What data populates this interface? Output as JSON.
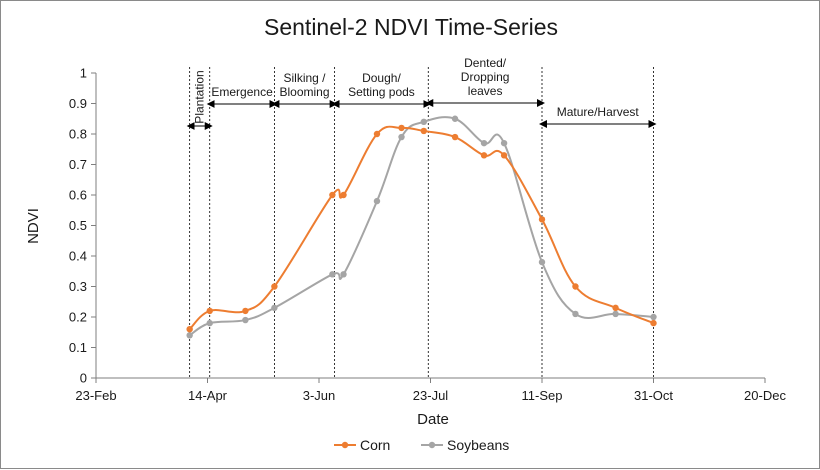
{
  "chart_data": {
    "type": "line",
    "title": "Sentinel-2 NDVI Time-Series",
    "xlabel": "Date",
    "ylabel": "NDVI",
    "ylim": [
      0,
      1
    ],
    "y_ticks": [
      "0",
      "0.1",
      "0.2",
      "0.3",
      "0.4",
      "0.5",
      "0.6",
      "0.7",
      "0.8",
      "0.9",
      "1"
    ],
    "x_ticks": [
      "23-Feb",
      "14-Apr",
      "3-Jun",
      "23-Jul",
      "11-Sep",
      "31-Oct",
      "20-Dec"
    ],
    "xlim": [
      "23-Feb",
      "20-Dec"
    ],
    "grid": false,
    "legend": "bottom",
    "series": [
      {
        "name": "Corn",
        "color": "#ED7D31",
        "x": [
          "6-Apr",
          "15-Apr",
          "1-May",
          "14-May",
          "9-Jun",
          "14-Jun",
          "29-Jun",
          "10-Jul",
          "20-Jul",
          "3-Aug",
          "16-Aug",
          "25-Aug",
          "11-Sep",
          "26-Sep",
          "14-Oct",
          "31-Oct"
        ],
        "y": [
          0.16,
          0.22,
          0.22,
          0.3,
          0.6,
          0.6,
          0.8,
          0.82,
          0.81,
          0.79,
          0.73,
          0.73,
          0.52,
          0.3,
          0.23,
          0.18
        ]
      },
      {
        "name": "Soybeans",
        "color": "#A5A5A5",
        "x": [
          "6-Apr",
          "15-Apr",
          "1-May",
          "14-May",
          "9-Jun",
          "14-Jun",
          "29-Jun",
          "10-Jul",
          "20-Jul",
          "3-Aug",
          "16-Aug",
          "25-Aug",
          "11-Sep",
          "26-Sep",
          "14-Oct",
          "31-Oct"
        ],
        "y": [
          0.14,
          0.18,
          0.19,
          0.23,
          0.34,
          0.34,
          0.58,
          0.79,
          0.84,
          0.85,
          0.77,
          0.77,
          0.38,
          0.21,
          0.21,
          0.2
        ]
      }
    ],
    "stages": [
      {
        "label_lines": [
          "Plantation"
        ],
        "start": "6-Apr",
        "end": "15-Apr",
        "rotated": true
      },
      {
        "label_lines": [
          "Emergence"
        ],
        "start": "15-Apr",
        "end": "14-May"
      },
      {
        "label_lines": [
          "Silking /",
          "Blooming"
        ],
        "start": "14-May",
        "end": "10-Jun"
      },
      {
        "label_lines": [
          "Dough/",
          "Setting pods"
        ],
        "start": "10-Jun",
        "end": "22-Jul"
      },
      {
        "label_lines": [
          "Dented/",
          "Dropping",
          "leaves"
        ],
        "start": "22-Jul",
        "end": "11-Sep"
      },
      {
        "label_lines": [
          "Mature/Harvest"
        ],
        "start": "11-Sep",
        "end": "31-Oct"
      }
    ]
  }
}
